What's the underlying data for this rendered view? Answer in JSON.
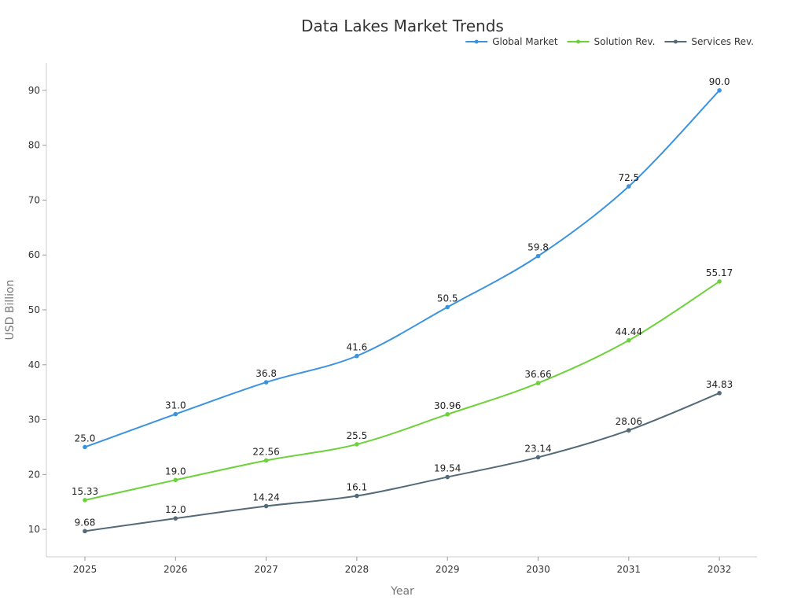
{
  "chart_data": {
    "type": "line",
    "title": "Data Lakes Market Trends",
    "xlabel": "Year",
    "ylabel": "USD Billion",
    "x": [
      "2025",
      "2026",
      "2027",
      "2028",
      "2029",
      "2030",
      "2031",
      "2032"
    ],
    "yticks": [
      10,
      20,
      30,
      40,
      50,
      60,
      70,
      80,
      90
    ],
    "ylim": [
      5,
      95
    ],
    "grid": false,
    "legend_position": "top-right",
    "series": [
      {
        "name": "Global Market",
        "color": "#3b93df",
        "values": [
          25.0,
          31.0,
          36.8,
          41.6,
          50.5,
          59.8,
          72.5,
          90.0
        ],
        "labels": [
          "25.0",
          "31.0",
          "36.8",
          "41.6",
          "50.5",
          "59.8",
          "72.5",
          "90.0"
        ]
      },
      {
        "name": "Solution Rev.",
        "color": "#6cd13a",
        "values": [
          15.33,
          19.0,
          22.56,
          25.5,
          30.96,
          36.66,
          44.44,
          55.17
        ],
        "labels": [
          "15.33",
          "19.0",
          "22.56",
          "25.5",
          "30.96",
          "36.66",
          "44.44",
          "55.17"
        ]
      },
      {
        "name": "Services Rev.",
        "color": "#546a79",
        "values": [
          9.68,
          12.0,
          14.24,
          16.1,
          19.54,
          23.14,
          28.06,
          34.83
        ],
        "labels": [
          "9.68",
          "12.0",
          "14.24",
          "16.1",
          "19.54",
          "23.14",
          "28.06",
          "34.83"
        ]
      }
    ]
  }
}
